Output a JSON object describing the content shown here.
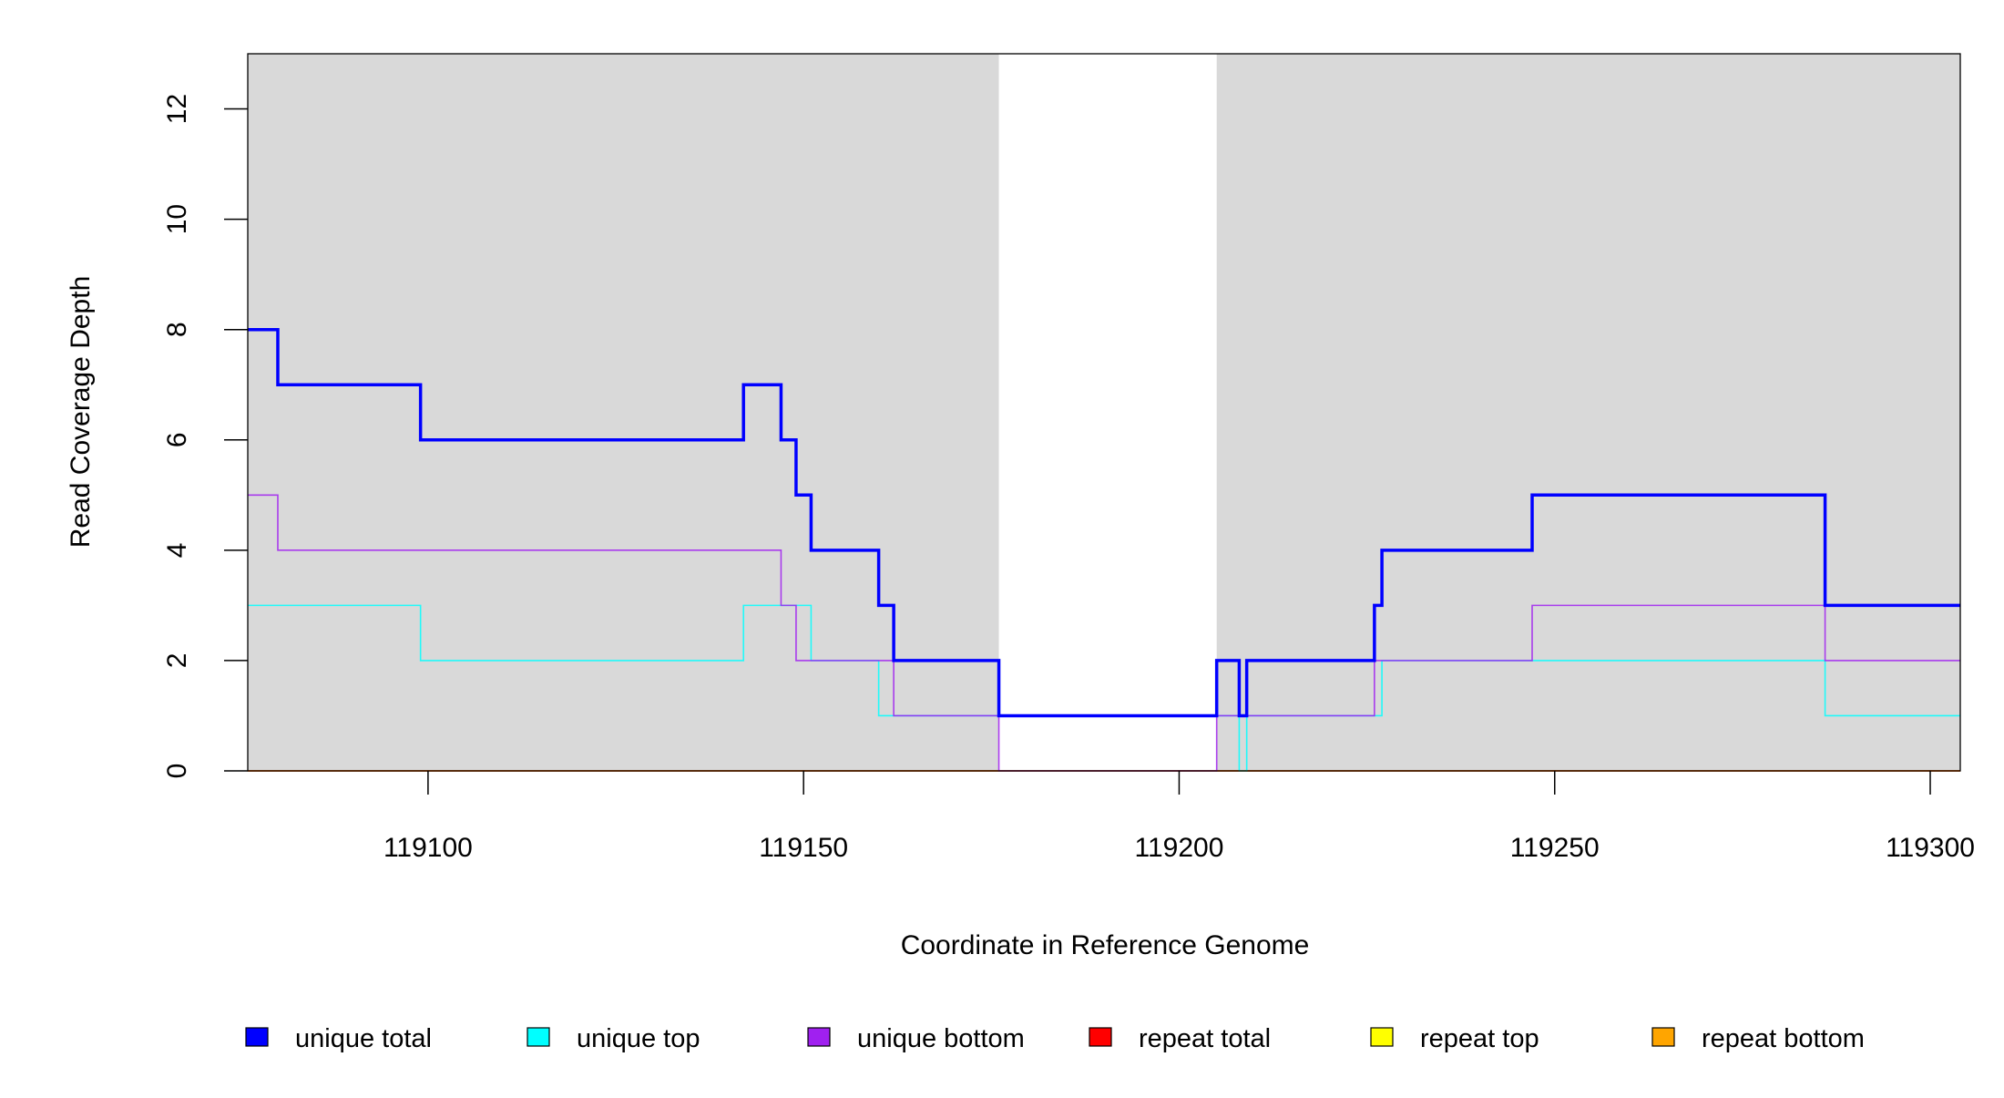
{
  "chart_data": {
    "type": "line",
    "step": true,
    "xlabel": "Coordinate in Reference Genome",
    "ylabel": "Read Coverage Depth",
    "xlim": [
      119076,
      119304
    ],
    "ylim": [
      0,
      13
    ],
    "xticks": [
      119100,
      119150,
      119200,
      119250,
      119300
    ],
    "xtick_labels": [
      "119100",
      "119150",
      "119200",
      "119250",
      "119300"
    ],
    "yticks": [
      0,
      2,
      4,
      6,
      8,
      10,
      12
    ],
    "ytick_labels": [
      "0",
      "2",
      "4",
      "6",
      "8",
      "10",
      "12"
    ],
    "shaded_regions": [
      {
        "start": 119076,
        "end": 119176,
        "color": "#d9d9d9"
      },
      {
        "start": 119205,
        "end": 119304,
        "color": "#d9d9d9"
      }
    ],
    "series": [
      {
        "name": "unique total",
        "color": "#0000ff",
        "steps": [
          [
            119076,
            8
          ],
          [
            119080,
            7
          ],
          [
            119099,
            6
          ],
          [
            119142,
            7
          ],
          [
            119147,
            6
          ],
          [
            119149,
            5
          ],
          [
            119151,
            4
          ],
          [
            119160,
            3
          ],
          [
            119162,
            2
          ],
          [
            119176,
            1
          ],
          [
            119205,
            2
          ],
          [
            119208,
            1
          ],
          [
            119209,
            2
          ],
          [
            119226,
            3
          ],
          [
            119227,
            4
          ],
          [
            119247,
            5
          ],
          [
            119286,
            3
          ],
          [
            119304,
            3
          ]
        ]
      },
      {
        "name": "unique top",
        "color": "#00ffff",
        "steps": [
          [
            119076,
            3
          ],
          [
            119099,
            2
          ],
          [
            119142,
            3
          ],
          [
            119151,
            2
          ],
          [
            119160,
            1
          ],
          [
            119208,
            0
          ],
          [
            119209,
            1
          ],
          [
            119227,
            2
          ],
          [
            119286,
            1
          ],
          [
            119304,
            1
          ]
        ]
      },
      {
        "name": "unique bottom",
        "color": "#a020f0",
        "steps": [
          [
            119076,
            5
          ],
          [
            119080,
            4
          ],
          [
            119147,
            3
          ],
          [
            119149,
            2
          ],
          [
            119162,
            1
          ],
          [
            119176,
            0
          ],
          [
            119205,
            1
          ],
          [
            119226,
            2
          ],
          [
            119247,
            3
          ],
          [
            119286,
            2
          ],
          [
            119304,
            2
          ]
        ]
      },
      {
        "name": "repeat total",
        "color": "#ff0000",
        "steps": [
          [
            119076,
            0
          ],
          [
            119304,
            0
          ]
        ]
      },
      {
        "name": "repeat top",
        "color": "#ffff00",
        "steps": [
          [
            119076,
            0
          ],
          [
            119304,
            0
          ]
        ]
      },
      {
        "name": "repeat bottom",
        "color": "#ffa500",
        "steps": [
          [
            119076,
            0
          ],
          [
            119304,
            0
          ]
        ]
      }
    ],
    "legend": {
      "placement": "bottom",
      "entries": [
        "unique total",
        "unique top",
        "unique bottom",
        "repeat total",
        "repeat top",
        "repeat bottom"
      ]
    }
  }
}
